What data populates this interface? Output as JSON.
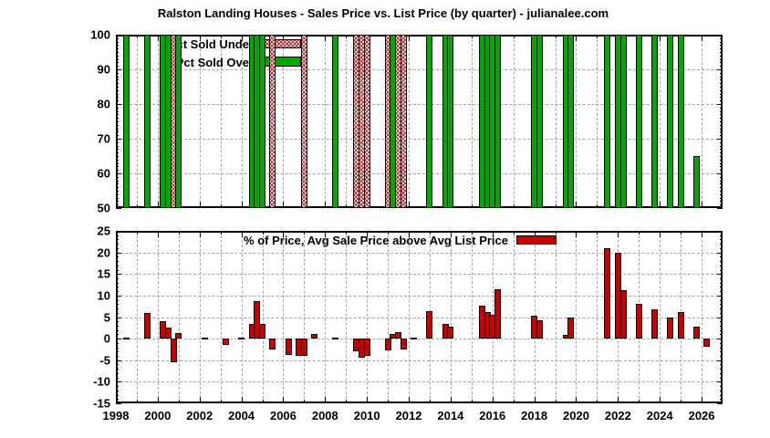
{
  "title": "Ralston Landing Houses - Sales Price vs. List Price (by quarter) - julianalee.com",
  "colors": {
    "green": "#00a800",
    "red": "#c80000",
    "hatch_red": "#bb2222",
    "grid": "#a6a6a6",
    "border": "#000000",
    "background": "#ffffff"
  },
  "chart_data": [
    {
      "type": "bar",
      "id": "pct-sold-panel",
      "xlim": [
        1998,
        2027
      ],
      "ylim": [
        50,
        100
      ],
      "yticks": [
        50,
        60,
        70,
        80,
        90,
        100
      ],
      "ygrid": [
        60,
        70,
        80,
        90
      ],
      "xticks": [
        1998,
        2000,
        2002,
        2004,
        2006,
        2008,
        2010,
        2012,
        2014,
        2016,
        2018,
        2020,
        2022,
        2024,
        2026
      ],
      "baseline": 50,
      "grid": true,
      "legend_position": "top-left",
      "series": [
        {
          "name": "Pct Sold Under",
          "style": "hatch",
          "points": [
            [
              2000.75,
              100
            ],
            [
              2005.5,
              100
            ],
            [
              2007,
              100
            ],
            [
              2009.5,
              100
            ],
            [
              2009.75,
              100
            ],
            [
              2010,
              100
            ],
            [
              2011,
              100
            ],
            [
              2011.5,
              100
            ],
            [
              2011.75,
              100
            ]
          ]
        },
        {
          "name": "Pct Sold Over",
          "style": "green",
          "points": [
            [
              1998.5,
              100
            ],
            [
              1999.5,
              100
            ],
            [
              2000.25,
              100
            ],
            [
              2000.5,
              100
            ],
            [
              2001,
              100
            ],
            [
              2004.5,
              100
            ],
            [
              2004.75,
              100
            ],
            [
              2005,
              100
            ],
            [
              2008.5,
              100
            ],
            [
              2011.25,
              100
            ],
            [
              2013,
              100
            ],
            [
              2013.75,
              100
            ],
            [
              2014,
              100
            ],
            [
              2015.5,
              100
            ],
            [
              2015.75,
              100
            ],
            [
              2016,
              100
            ],
            [
              2016.25,
              100
            ],
            [
              2018,
              100
            ],
            [
              2018.25,
              100
            ],
            [
              2019.5,
              100
            ],
            [
              2019.75,
              100
            ],
            [
              2021.5,
              100
            ],
            [
              2022,
              100
            ],
            [
              2022.25,
              100
            ],
            [
              2023,
              100
            ],
            [
              2023.75,
              100
            ],
            [
              2024.5,
              100
            ],
            [
              2025,
              100
            ],
            [
              2025.75,
              65
            ]
          ]
        }
      ]
    },
    {
      "type": "bar",
      "id": "price-diff-panel",
      "xlim": [
        1998,
        2027
      ],
      "ylim": [
        -15,
        25
      ],
      "yticks": [
        -15,
        -10,
        -5,
        0,
        5,
        10,
        15,
        20,
        25
      ],
      "ygrid": [
        -10,
        -5,
        0,
        5,
        10,
        15,
        20
      ],
      "xticks": [
        1998,
        2000,
        2002,
        2004,
        2006,
        2008,
        2010,
        2012,
        2014,
        2016,
        2018,
        2020,
        2022,
        2024,
        2026
      ],
      "baseline": 0,
      "grid": true,
      "legend_position": "top-center",
      "series": [
        {
          "name": "% of Price, Avg Sale Price above Avg List Price",
          "style": "red",
          "points": [
            [
              1998.5,
              0
            ],
            [
              1999.5,
              6
            ],
            [
              2000.25,
              4
            ],
            [
              2000.5,
              2.5
            ],
            [
              2000.75,
              -5.5
            ],
            [
              2001,
              1.4
            ],
            [
              2002.25,
              0
            ],
            [
              2003.25,
              -1.5
            ],
            [
              2004,
              0
            ],
            [
              2004.5,
              3.4
            ],
            [
              2004.75,
              8.8
            ],
            [
              2005,
              3.5
            ],
            [
              2005.5,
              -2.5
            ],
            [
              2006.25,
              -3.7
            ],
            [
              2006.75,
              -4
            ],
            [
              2007,
              -4
            ],
            [
              2007.5,
              1
            ],
            [
              2008.5,
              0
            ],
            [
              2009.5,
              -3
            ],
            [
              2009.75,
              -4.5
            ],
            [
              2010,
              -4
            ],
            [
              2011,
              -2.8
            ],
            [
              2011.25,
              1
            ],
            [
              2011.5,
              1.5
            ],
            [
              2011.75,
              -2.5
            ],
            [
              2012.25,
              0
            ],
            [
              2013,
              6.3
            ],
            [
              2013.75,
              3.4
            ],
            [
              2014,
              2.8
            ],
            [
              2015.5,
              7.6
            ],
            [
              2015.75,
              6.1
            ],
            [
              2016,
              5.5
            ],
            [
              2016.25,
              11.4
            ],
            [
              2018,
              5.3
            ],
            [
              2018.25,
              4.2
            ],
            [
              2019.5,
              0.9
            ],
            [
              2019.75,
              5
            ],
            [
              2021.5,
              21
            ],
            [
              2022,
              20
            ],
            [
              2022.25,
              11.2
            ],
            [
              2023,
              8
            ],
            [
              2023.75,
              6.8
            ],
            [
              2024.5,
              4.9
            ],
            [
              2025,
              6.2
            ],
            [
              2025.75,
              2.7
            ],
            [
              2026.25,
              -1.8
            ]
          ]
        }
      ]
    }
  ]
}
